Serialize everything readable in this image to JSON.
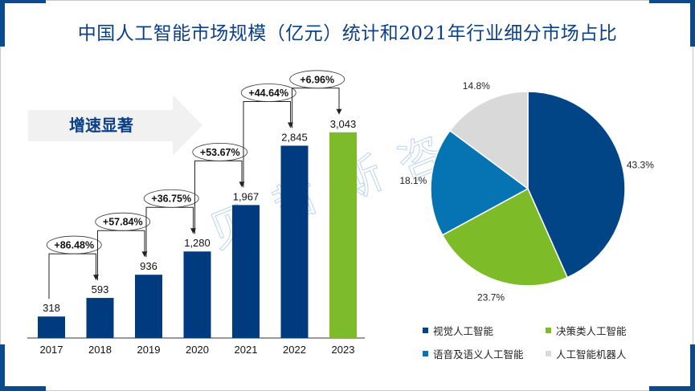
{
  "title": "中国人工智能市场规模（亿元）统计和2021年行业细分市场占比",
  "callout": {
    "label": "增速显著"
  },
  "watermark": {
    "text": "贝哲斯咨询",
    "chars": [
      "贝",
      "哲",
      "斯",
      "咨",
      "询"
    ]
  },
  "colors": {
    "frame_accent": "#0b4a8f",
    "bar": "#003b7f",
    "bar_highlight": "#7dbb2a",
    "callout_bg": "#f1f1f1",
    "title": "#0b3f86"
  },
  "chart_data": [
    {
      "type": "bar",
      "title": "中国人工智能市场规模（亿元）",
      "xlabel": "",
      "ylabel": "",
      "categories": [
        "2017",
        "2018",
        "2019",
        "2020",
        "2021",
        "2022",
        "2023"
      ],
      "values": [
        318,
        593,
        936,
        1280,
        1967,
        2845,
        3043
      ],
      "value_labels": [
        "318",
        "593",
        "936",
        "1,280",
        "1,967",
        "2,845",
        "3,043"
      ],
      "highlight_index": 6,
      "ylim": [
        0,
        3100
      ],
      "grid": false,
      "growth_annotations": [
        {
          "from": "2017",
          "to": "2018",
          "label": "+86.48%"
        },
        {
          "from": "2018",
          "to": "2019",
          "label": "+57.84%"
        },
        {
          "from": "2019",
          "to": "2020",
          "label": "+36.75%"
        },
        {
          "from": "2020",
          "to": "2021",
          "label": "+53.67%"
        },
        {
          "from": "2021",
          "to": "2022",
          "label": "+44.64%"
        },
        {
          "from": "2022",
          "to": "2023",
          "label": "+6.96%"
        }
      ]
    },
    {
      "type": "pie",
      "title": "2021年行业细分市场占比",
      "slices": [
        {
          "name": "视觉人工智能",
          "value": 43.3,
          "label": "43.3%",
          "color": "#014587"
        },
        {
          "name": "决策类人工智能",
          "value": 23.7,
          "label": "23.7%",
          "color": "#7dbc28"
        },
        {
          "name": "语音及语义人工智能",
          "value": 18.1,
          "label": "18.1%",
          "color": "#0673b3"
        },
        {
          "name": "人工智能机器人",
          "value": 14.8,
          "label": "14.8%",
          "color": "#d9d9d9"
        }
      ],
      "start": "12 o'clock",
      "direction": "clockwise",
      "legend_position": "bottom",
      "legend": [
        "视觉人工智能",
        "决策类人工智能",
        "语音及语义人工智能",
        "人工智能机器人"
      ]
    }
  ]
}
